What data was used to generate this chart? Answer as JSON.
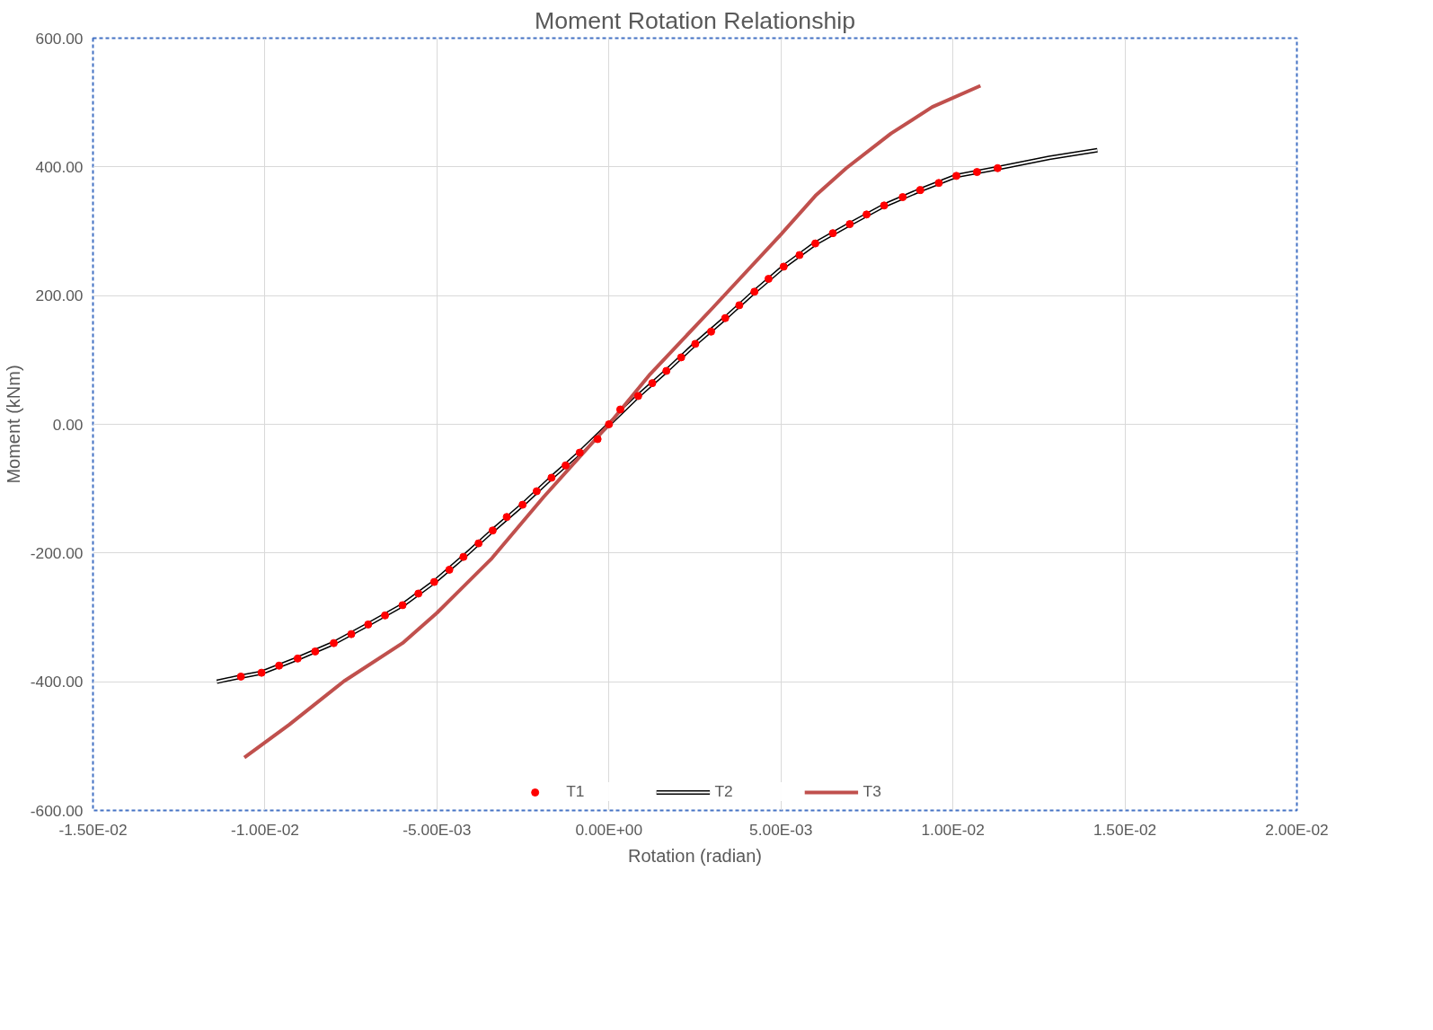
{
  "chart_data": {
    "type": "line",
    "title": "Moment Rotation Relationship",
    "xlabel": "Rotation (radian)",
    "ylabel": "Moment (kNm)",
    "xlim": [
      -0.015,
      0.02
    ],
    "ylim": [
      -600,
      600
    ],
    "xticks": [
      {
        "value": -0.015,
        "label": "-1.50E-02"
      },
      {
        "value": -0.01,
        "label": "-1.00E-02"
      },
      {
        "value": -0.005,
        "label": "-5.00E-03"
      },
      {
        "value": 0,
        "label": "0.00E+00"
      },
      {
        "value": 0.005,
        "label": "5.00E-03"
      },
      {
        "value": 0.01,
        "label": "1.00E-02"
      },
      {
        "value": 0.015,
        "label": "1.50E-02"
      },
      {
        "value": 0.02,
        "label": "2.00E-02"
      }
    ],
    "yticks": [
      {
        "value": -600,
        "label": "-600.00"
      },
      {
        "value": -400,
        "label": "-400.00"
      },
      {
        "value": -200,
        "label": "-200.00"
      },
      {
        "value": 0,
        "label": "0.00"
      },
      {
        "value": 200,
        "label": "200.00"
      },
      {
        "value": 400,
        "label": "400.00"
      },
      {
        "value": 600,
        "label": "600.00"
      }
    ],
    "grid": true,
    "legend": "bottom",
    "series": [
      {
        "name": "T1",
        "type": "scatter",
        "marker": "circle",
        "color": "#ff0000",
        "x": [
          -0.0107,
          -0.0101,
          -0.00959,
          -0.00905,
          -0.00854,
          -0.008,
          -0.00749,
          -0.007,
          -0.00651,
          -0.006,
          -0.00554,
          -0.00508,
          -0.00464,
          -0.00423,
          -0.00379,
          -0.00338,
          -0.00297,
          -0.00251,
          -0.0021,
          -0.00167,
          -0.00126,
          -0.00085,
          -0.00033,
          0,
          0.00033,
          0.00085,
          0.00126,
          0.00167,
          0.0021,
          0.00251,
          0.00297,
          0.00338,
          0.00379,
          0.00423,
          0.00464,
          0.00508,
          0.00554,
          0.006,
          0.00651,
          0.007,
          0.00749,
          0.008,
          0.00854,
          0.00905,
          0.00959,
          0.0101,
          0.0107,
          0.0113
        ],
        "values": [
          -392,
          -386,
          -375,
          -364,
          -353,
          -340,
          -326,
          -311,
          -297,
          -281,
          -263,
          -245,
          -226,
          -206,
          -185,
          -165,
          -144,
          -125,
          -104,
          -83,
          -64,
          -44,
          -23,
          0,
          23,
          44,
          64,
          83,
          104,
          125,
          144,
          165,
          185,
          206,
          226,
          245,
          263,
          281,
          297,
          311,
          326,
          340,
          353,
          364,
          375,
          386,
          392,
          398
        ]
      },
      {
        "name": "T2",
        "color": "#000000",
        "x": [
          -0.0114,
          -0.0107,
          -0.0101,
          -0.00905,
          -0.008,
          -0.007,
          -0.006,
          -0.00508,
          -0.00423,
          -0.00338,
          -0.00251,
          -0.00167,
          -0.00085,
          0,
          0.00085,
          0.00167,
          0.00251,
          0.00338,
          0.00423,
          0.00508,
          0.006,
          0.007,
          0.008,
          0.00905,
          0.0101,
          0.0113,
          0.0128,
          0.0142
        ],
        "values": [
          -400,
          -392,
          -386,
          -364,
          -340,
          -311,
          -281,
          -245,
          -206,
          -165,
          -125,
          -83,
          -44,
          0,
          44,
          83,
          125,
          165,
          206,
          245,
          281,
          311,
          340,
          364,
          386,
          398,
          414,
          426
        ]
      },
      {
        "name": "T3",
        "color": "#c0504d",
        "x": [
          -0.0106,
          -0.0093,
          -0.0077,
          -0.006,
          -0.005,
          -0.0034,
          -0.0019,
          0,
          0.0012,
          0.003,
          0.005,
          0.006,
          0.0069,
          0.0082,
          0.0094,
          0.0108
        ],
        "values": [
          -518,
          -467,
          -399,
          -340,
          -293,
          -208,
          -113,
          0,
          78,
          180,
          295,
          355,
          398,
          452,
          493,
          526
        ]
      }
    ]
  }
}
